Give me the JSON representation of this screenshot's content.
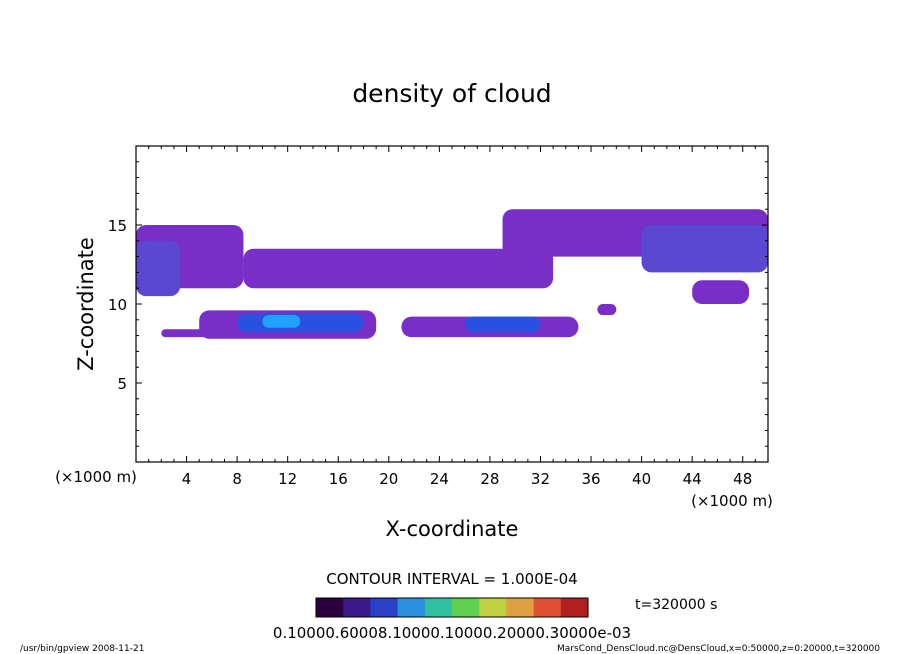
{
  "chart_data": {
    "type": "heatmap",
    "title": "density of cloud",
    "xlabel": "X-coordinate",
    "ylabel": "Z-coordinate",
    "x_units": "(×1000 m)",
    "y_units": "(×1000 m)",
    "xlim": [
      0,
      50
    ],
    "ylim": [
      0,
      20
    ],
    "xticks": [
      4,
      8,
      12,
      16,
      20,
      24,
      28,
      32,
      36,
      40,
      44,
      48
    ],
    "yticks": [
      5,
      10,
      15
    ],
    "colormap": [
      "#2a0040",
      "#3a1a8a",
      "#2a40c8",
      "#2a90e0",
      "#30c0a0",
      "#60d050",
      "#c0d040",
      "#e0a040",
      "#e05030",
      "#b02020"
    ],
    "fill_colors": {
      "low": "#7a2ec8",
      "mid": "#5a48d0",
      "high": "#2a50e0",
      "peak": "#20a0ff"
    },
    "regions": [
      {
        "level": "low",
        "x": [
          0,
          8.5
        ],
        "z": [
          11.0,
          15.0
        ]
      },
      {
        "level": "mid",
        "x": [
          0,
          3.5
        ],
        "z": [
          10.5,
          14.0
        ]
      },
      {
        "level": "low",
        "x": [
          8.5,
          33
        ],
        "z": [
          11.0,
          13.5
        ]
      },
      {
        "level": "low",
        "x": [
          29,
          50
        ],
        "z": [
          13.0,
          16.0
        ]
      },
      {
        "level": "mid",
        "x": [
          40,
          50
        ],
        "z": [
          12.0,
          15.0
        ]
      },
      {
        "level": "low",
        "x": [
          44,
          48.5
        ],
        "z": [
          10.0,
          11.5
        ]
      },
      {
        "level": "low",
        "x": [
          2,
          18
        ],
        "z": [
          7.9,
          8.4
        ]
      },
      {
        "level": "low",
        "x": [
          5,
          19
        ],
        "z": [
          7.8,
          9.6
        ]
      },
      {
        "level": "high",
        "x": [
          8,
          18
        ],
        "z": [
          8.2,
          9.4
        ]
      },
      {
        "level": "peak",
        "x": [
          10,
          13
        ],
        "z": [
          8.5,
          9.3
        ]
      },
      {
        "level": "low",
        "x": [
          21,
          35
        ],
        "z": [
          7.9,
          9.2
        ]
      },
      {
        "level": "high",
        "x": [
          26,
          32
        ],
        "z": [
          8.2,
          9.2
        ]
      },
      {
        "level": "low",
        "x": [
          36.5,
          38
        ],
        "z": [
          9.3,
          10.0
        ]
      }
    ],
    "contour_interval": "CONTOUR INTERVAL = 1.000E-04",
    "time": "t=320000 s",
    "colorbar_labels": "0.10000.60008.10000.10000.20000.30000e-03"
  },
  "footer": {
    "left": "/usr/bin/gpview  2008-11-21",
    "right": "MarsCond_DensCloud.nc@DensCloud,x=0:50000,z=0:20000,t=320000"
  }
}
